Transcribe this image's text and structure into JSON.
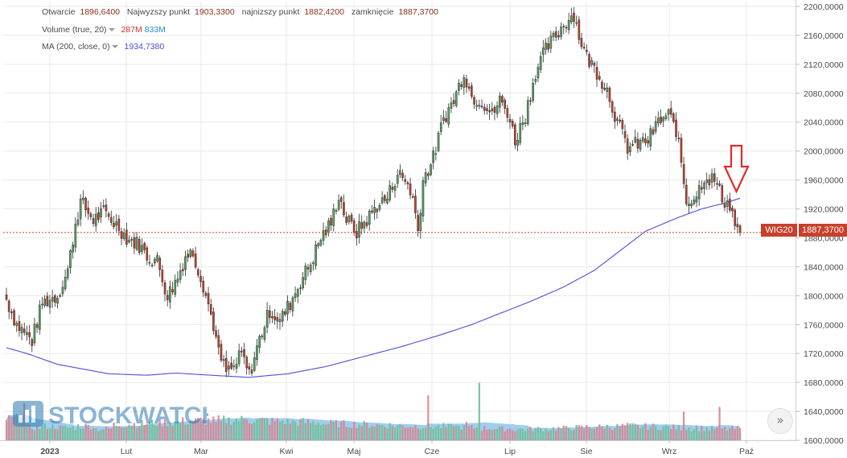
{
  "legend": {
    "ohlc": {
      "open_label": "Otwarcie",
      "open": "1896,6400",
      "high_label": "Najwyzszy punkt",
      "high": "1903,3300",
      "low_label": "najnizszy punkt",
      "low": "1882,4200",
      "close_label": "zamknięcie",
      "close": "1887,3700"
    },
    "volume": {
      "label": "Volume (true, 20)",
      "v1": "287M",
      "v2": "833M"
    },
    "ma": {
      "label": "MA (200, close, 0)",
      "value": "1934,7380"
    }
  },
  "badge": {
    "symbol": "WIG20",
    "price": "1887,3700"
  },
  "watermark": {
    "text": "STOCKWATCH"
  },
  "scroll_button": {
    "glyph": "»"
  },
  "colors": {
    "up": "#55a661",
    "down": "#c8402a",
    "ma": "#4d4dd6",
    "vol_up": "#6cbd8c",
    "vol_down": "#d97f86",
    "area": "#8fc6ec",
    "grid": "#e9e9e9",
    "price_line": "#c8402a",
    "arrow": "#e02b2b",
    "text": "#4a4a4a",
    "watermark": "#2f79b3"
  },
  "chart_data": {
    "type": "candlestick",
    "symbol": "WIG20",
    "y_ticks": [
      "2200,0000",
      "2160,0000",
      "2120,0000",
      "2080,0000",
      "2040,0000",
      "2000,0000",
      "1960,0000",
      "1920,0000",
      "1880,0000",
      "1840,0000",
      "1800,0000",
      "1760,0000",
      "1720,0000",
      "1680,0000",
      "1640,0000",
      "1600,0000"
    ],
    "y_tick_values": [
      2200,
      2160,
      2120,
      2080,
      2040,
      2000,
      1960,
      1920,
      1880,
      1840,
      1800,
      1760,
      1720,
      1680,
      1640,
      1600
    ],
    "ylim": [
      1600,
      2200
    ],
    "x_ticks": [
      "2023",
      "Lut",
      "Mar",
      "Kwi",
      "Maj",
      "Cze",
      "Lip",
      "Sie",
      "Wrz",
      "Paź"
    ],
    "last_price": 1887.37,
    "ma200_last": 1934.738,
    "close_path": [
      [
        0,
        1795
      ],
      [
        4,
        1760
      ],
      [
        10,
        1738
      ],
      [
        14,
        1790
      ],
      [
        20,
        1800
      ],
      [
        24,
        1835
      ],
      [
        27,
        1900
      ],
      [
        29,
        1930
      ],
      [
        34,
        1905
      ],
      [
        38,
        1915
      ],
      [
        44,
        1895
      ],
      [
        47,
        1880
      ],
      [
        52,
        1870
      ],
      [
        55,
        1855
      ],
      [
        59,
        1848
      ],
      [
        63,
        1800
      ],
      [
        67,
        1825
      ],
      [
        70,
        1855
      ],
      [
        73,
        1860
      ],
      [
        77,
        1815
      ],
      [
        81,
        1760
      ],
      [
        83,
        1720
      ],
      [
        86,
        1695
      ],
      [
        89,
        1700
      ],
      [
        92,
        1720
      ],
      [
        95,
        1690
      ],
      [
        99,
        1740
      ],
      [
        103,
        1780
      ],
      [
        107,
        1765
      ],
      [
        111,
        1790
      ],
      [
        115,
        1820
      ],
      [
        119,
        1845
      ],
      [
        123,
        1880
      ],
      [
        127,
        1900
      ],
      [
        130,
        1940
      ],
      [
        133,
        1905
      ],
      [
        137,
        1888
      ],
      [
        141,
        1905
      ],
      [
        145,
        1925
      ],
      [
        149,
        1935
      ],
      [
        153,
        1970
      ],
      [
        157,
        1955
      ],
      [
        159,
        1935
      ],
      [
        161,
        1890
      ],
      [
        163,
        1960
      ],
      [
        167,
        1990
      ],
      [
        171,
        2045
      ],
      [
        175,
        2070
      ],
      [
        179,
        2110
      ],
      [
        182,
        2075
      ],
      [
        186,
        2070
      ],
      [
        190,
        2050
      ],
      [
        193,
        2070
      ],
      [
        196,
        2055
      ],
      [
        199,
        2015
      ],
      [
        203,
        2050
      ],
      [
        207,
        2110
      ],
      [
        211,
        2140
      ],
      [
        215,
        2160
      ],
      [
        219,
        2180
      ],
      [
        222,
        2190
      ],
      [
        224,
        2160
      ],
      [
        227,
        2130
      ],
      [
        231,
        2110
      ],
      [
        235,
        2085
      ],
      [
        239,
        2040
      ],
      [
        243,
        2005
      ],
      [
        247,
        2010
      ],
      [
        251,
        2015
      ],
      [
        255,
        2040
      ],
      [
        259,
        2050
      ],
      [
        262,
        2030
      ],
      [
        264,
        1985
      ],
      [
        266,
        1930
      ],
      [
        270,
        1940
      ],
      [
        273,
        1965
      ],
      [
        277,
        1960
      ],
      [
        280,
        1935
      ],
      [
        283,
        1925
      ],
      [
        285,
        1900
      ],
      [
        287,
        1887
      ]
    ],
    "ma200_path": [
      [
        0,
        1728
      ],
      [
        8,
        1720
      ],
      [
        20,
        1705
      ],
      [
        40,
        1692
      ],
      [
        55,
        1690
      ],
      [
        66,
        1693
      ],
      [
        80,
        1690
      ],
      [
        95,
        1687
      ],
      [
        110,
        1692
      ],
      [
        125,
        1702
      ],
      [
        140,
        1716
      ],
      [
        155,
        1730
      ],
      [
        170,
        1746
      ],
      [
        182,
        1760
      ],
      [
        192,
        1774
      ],
      [
        205,
        1792
      ],
      [
        218,
        1812
      ],
      [
        230,
        1835
      ],
      [
        240,
        1862
      ],
      [
        250,
        1889
      ],
      [
        262,
        1907
      ],
      [
        272,
        1920
      ],
      [
        281,
        1928
      ],
      [
        287,
        1934.74
      ]
    ],
    "volume_pct": [
      0.92,
      0.55,
      0.6,
      0.55,
      0.62,
      0.5,
      0.68,
      0.72,
      0.75,
      0.78,
      0.82,
      0.85,
      0.88,
      0.9,
      0.86,
      0.83,
      0.8,
      0.78,
      0.72,
      0.7,
      0.68,
      0.66,
      0.64,
      0.62,
      0.6,
      0.58,
      0.55,
      0.53,
      0.5,
      0.48,
      0.5,
      0.52,
      0.55,
      0.58,
      0.6,
      0.62,
      0.6,
      0.58,
      0.55,
      0.52,
      0.5,
      0.5
    ],
    "volume_spikes": [
      [
        7,
        1.6
      ],
      [
        82,
        0.8
      ],
      [
        84,
        0.85
      ],
      [
        94,
        0.9
      ],
      [
        165,
        1.95
      ],
      [
        175,
        0.6
      ],
      [
        180,
        0.8
      ],
      [
        185,
        2.5
      ],
      [
        265,
        1.25
      ],
      [
        270,
        0.65
      ],
      [
        279,
        1.45
      ]
    ]
  }
}
